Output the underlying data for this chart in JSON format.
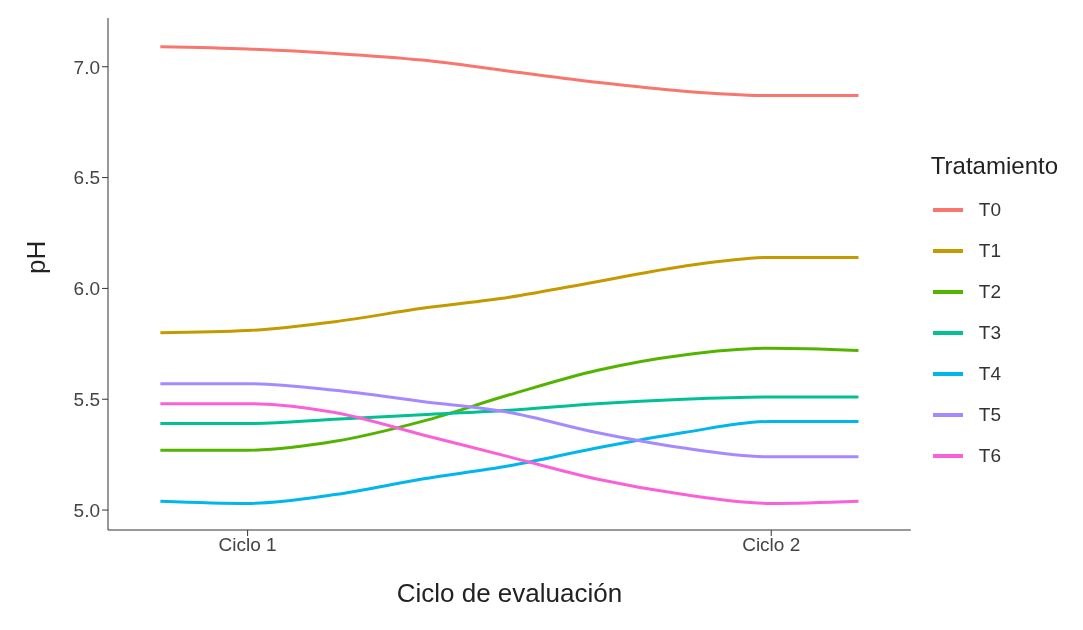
{
  "chart_data": {
    "type": "line",
    "xlabel": "Ciclo de evaluación",
    "ylabel": "pH",
    "legend_title": "Tratamiento",
    "legend": "right",
    "grid": false,
    "marker": "none",
    "line_style": "solid",
    "categories": [
      null,
      "Ciclo 1",
      null,
      null,
      null,
      null,
      null,
      "Ciclo 2",
      null
    ],
    "ylim": [
      4.91,
      7.22
    ],
    "yticks": [
      {
        "value": 5,
        "label": "5.0"
      },
      5.5,
      {
        "value": 6,
        "label": "6.0"
      },
      6.5,
      {
        "value": 7,
        "label": "7.0"
      }
    ],
    "series": [
      {
        "name": "T0",
        "color": "#f8766d",
        "values": [
          7.09,
          7.08,
          7.06,
          7.03,
          6.98,
          6.93,
          6.89,
          6.87,
          6.87
        ]
      },
      {
        "name": "T1",
        "color": "#c49a00",
        "values": [
          5.8,
          5.81,
          5.85,
          5.91,
          5.96,
          6.03,
          6.1,
          6.14,
          6.14
        ]
      },
      {
        "name": "T2",
        "color": "#53b400",
        "values": [
          5.27,
          5.27,
          5.31,
          5.4,
          5.52,
          5.63,
          5.7,
          5.73,
          5.72
        ]
      },
      {
        "name": "T3",
        "color": "#00c094",
        "values": [
          5.39,
          5.39,
          5.41,
          5.43,
          5.45,
          5.48,
          5.5,
          5.51,
          5.51
        ]
      },
      {
        "name": "T4",
        "color": "#00b6eb",
        "values": [
          5.04,
          5.03,
          5.07,
          5.14,
          5.2,
          5.28,
          5.35,
          5.4,
          5.4
        ]
      },
      {
        "name": "T5",
        "color": "#a58aff",
        "values": [
          5.57,
          5.57,
          5.54,
          5.49,
          5.44,
          5.35,
          5.28,
          5.24,
          5.24
        ]
      },
      {
        "name": "T6",
        "color": "#fb61d7",
        "values": [
          5.48,
          5.48,
          5.44,
          5.34,
          5.24,
          5.14,
          5.07,
          5.03,
          5.04
        ]
      }
    ]
  }
}
